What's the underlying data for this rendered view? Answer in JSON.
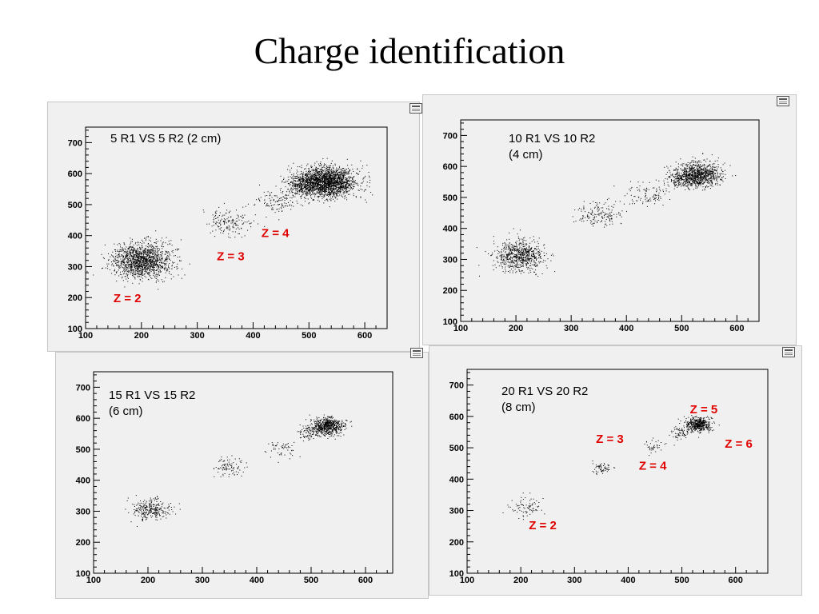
{
  "slide": {
    "title": "Charge identification"
  },
  "colors": {
    "point": "#000000",
    "annotation": "#e00000",
    "frame": "#000000",
    "panel_bg": "#f0f0f0"
  },
  "icons": {
    "panel_menu": "canvas-menu-icon"
  },
  "chart_data": [
    {
      "type": "scatter",
      "title": "5 R1 VS 5 R2 (2 cm)",
      "xlim": [
        100,
        640
      ],
      "ylim": [
        100,
        750
      ],
      "x_ticks": [
        100,
        200,
        300,
        400,
        500,
        600
      ],
      "y_ticks": [
        100,
        200,
        300,
        400,
        500,
        600,
        700
      ],
      "grid": false,
      "clusters": [
        {
          "z": 2,
          "x": 200,
          "y": 320,
          "sx": 26,
          "sy": 28,
          "n": 1400
        },
        {
          "z": 3,
          "x": 355,
          "y": 445,
          "sx": 22,
          "sy": 22,
          "n": 160
        },
        {
          "z": 4,
          "x": 440,
          "y": 510,
          "sx": 20,
          "sy": 20,
          "n": 120
        },
        {
          "z": 5,
          "x": 490,
          "y": 560,
          "sx": 15,
          "sy": 18,
          "n": 300
        },
        {
          "z": 6,
          "x": 530,
          "y": 575,
          "sx": 26,
          "sy": 24,
          "n": 2000
        }
      ],
      "annotations": [
        {
          "text": "Z = 2",
          "x": 150,
          "y": 185
        },
        {
          "text": "Z = 3",
          "x": 335,
          "y": 320
        },
        {
          "text": "Z = 4",
          "x": 415,
          "y": 395
        }
      ]
    },
    {
      "type": "scatter",
      "title": "10 R1 VS 10 R2\n(4 cm)",
      "xlim": [
        100,
        640
      ],
      "ylim": [
        100,
        750
      ],
      "x_ticks": [
        100,
        200,
        300,
        400,
        500,
        600
      ],
      "y_ticks": [
        100,
        200,
        300,
        400,
        500,
        600,
        700
      ],
      "grid": false,
      "clusters": [
        {
          "z": 2,
          "x": 205,
          "y": 312,
          "sx": 22,
          "sy": 24,
          "n": 700
        },
        {
          "z": 3,
          "x": 350,
          "y": 445,
          "sx": 22,
          "sy": 20,
          "n": 160
        },
        {
          "z": 4,
          "x": 440,
          "y": 510,
          "sx": 22,
          "sy": 20,
          "n": 100
        },
        {
          "z": 5,
          "x": 495,
          "y": 560,
          "sx": 12,
          "sy": 15,
          "n": 150
        },
        {
          "z": 6,
          "x": 530,
          "y": 575,
          "sx": 20,
          "sy": 20,
          "n": 900
        }
      ],
      "annotations": []
    },
    {
      "type": "scatter",
      "title": "15 R1 VS 15 R2\n(6 cm)",
      "xlim": [
        100,
        650
      ],
      "ylim": [
        100,
        750
      ],
      "x_ticks": [
        100,
        200,
        300,
        400,
        500,
        600
      ],
      "y_ticks": [
        100,
        200,
        300,
        400,
        500,
        600,
        700
      ],
      "grid": false,
      "clusters": [
        {
          "z": 2,
          "x": 205,
          "y": 308,
          "sx": 17,
          "sy": 16,
          "n": 280
        },
        {
          "z": 3,
          "x": 348,
          "y": 443,
          "sx": 14,
          "sy": 16,
          "n": 90
        },
        {
          "z": 4,
          "x": 445,
          "y": 505,
          "sx": 12,
          "sy": 14,
          "n": 55
        },
        {
          "z": 5,
          "x": 495,
          "y": 552,
          "sx": 10,
          "sy": 12,
          "n": 70
        },
        {
          "z": 6,
          "x": 530,
          "y": 575,
          "sx": 15,
          "sy": 14,
          "n": 650
        }
      ],
      "annotations": []
    },
    {
      "type": "scatter",
      "title": "20 R1 VS 20 R2\n(8 cm)",
      "xlim": [
        100,
        660
      ],
      "ylim": [
        100,
        750
      ],
      "x_ticks": [
        100,
        200,
        300,
        400,
        500,
        600
      ],
      "y_ticks": [
        100,
        200,
        300,
        400,
        500,
        600,
        700
      ],
      "grid": false,
      "clusters": [
        {
          "z": 2,
          "x": 210,
          "y": 310,
          "sx": 16,
          "sy": 16,
          "n": 80
        },
        {
          "z": 3,
          "x": 350,
          "y": 440,
          "sx": 10,
          "sy": 10,
          "n": 60
        },
        {
          "z": 4,
          "x": 445,
          "y": 505,
          "sx": 12,
          "sy": 12,
          "n": 40
        },
        {
          "z": 5,
          "x": 495,
          "y": 548,
          "sx": 10,
          "sy": 12,
          "n": 60
        },
        {
          "z": 6,
          "x": 530,
          "y": 575,
          "sx": 12,
          "sy": 11,
          "n": 480
        }
      ],
      "annotations": [
        {
          "text": "Z = 2",
          "x": 215,
          "y": 240
        },
        {
          "text": "Z = 3",
          "x": 340,
          "y": 515
        },
        {
          "text": "Z = 4",
          "x": 420,
          "y": 430
        },
        {
          "text": "Z = 5",
          "x": 515,
          "y": 610
        },
        {
          "text": "Z = 6",
          "x": 580,
          "y": 500
        }
      ]
    }
  ]
}
